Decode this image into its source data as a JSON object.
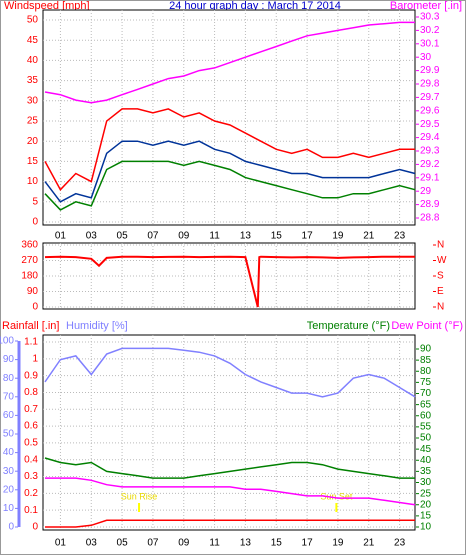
{
  "chart_data": [
    {
      "type": "line",
      "title": "24 hour graph day : March 17 2014",
      "y_label": "Windspeed [mph]",
      "y2_label": "Barometer [.in]",
      "grid": true,
      "x": [
        0,
        1,
        2,
        3,
        4,
        5,
        6,
        7,
        8,
        9,
        10,
        11,
        12,
        13,
        14,
        15,
        16,
        17,
        18,
        19,
        20,
        21,
        22,
        23,
        24
      ],
      "xlim": [
        0,
        24
      ],
      "xticks": [
        {
          "value": 1,
          "label": "01"
        },
        {
          "value": 3,
          "label": "03"
        },
        {
          "value": 5,
          "label": "05"
        },
        {
          "value": 7,
          "label": "07"
        },
        {
          "value": 9,
          "label": "09"
        },
        {
          "value": 11,
          "label": "11"
        },
        {
          "value": 13,
          "label": "13"
        },
        {
          "value": 15,
          "label": "15"
        },
        {
          "value": 17,
          "label": "17"
        },
        {
          "value": 19,
          "label": "19"
        },
        {
          "value": 21,
          "label": "21"
        },
        {
          "value": 23,
          "label": "23"
        }
      ],
      "ylim": [
        0,
        50
      ],
      "yticks": [
        0,
        5,
        10,
        15,
        20,
        25,
        30,
        35,
        40,
        45,
        50
      ],
      "y2lim": [
        28.8,
        30.3
      ],
      "y2ticks": [
        28.8,
        28.9,
        29,
        29.1,
        29.2,
        29.3,
        29.4,
        29.5,
        29.6,
        29.7,
        29.8,
        29.9,
        30,
        30.1,
        30.2,
        30.3
      ],
      "series": [
        {
          "color": "#ff0000",
          "values": [
            15,
            8,
            12,
            10,
            25,
            28,
            28,
            27,
            28,
            26,
            27,
            25,
            24,
            22,
            20,
            18,
            17,
            18,
            16,
            16,
            17,
            16,
            17,
            18,
            18
          ]
        },
        {
          "color": "#003399",
          "values": [
            10,
            5,
            7,
            6,
            17,
            20,
            20,
            19,
            20,
            19,
            20,
            18,
            17,
            15,
            14,
            13,
            12,
            12,
            11,
            11,
            11,
            11,
            12,
            13,
            12
          ]
        },
        {
          "color": "#008000",
          "values": [
            7,
            3,
            5,
            4,
            13,
            15,
            15,
            15,
            15,
            14,
            15,
            14,
            13,
            11,
            10,
            9,
            8,
            7,
            6,
            6,
            7,
            7,
            8,
            9,
            8
          ]
        },
        {
          "color": "#ff00ff",
          "axis": "y2",
          "values": [
            29.74,
            29.72,
            29.68,
            29.66,
            29.68,
            29.72,
            29.76,
            29.8,
            29.84,
            29.86,
            29.9,
            29.92,
            29.96,
            30,
            30.04,
            30.08,
            30.12,
            30.16,
            30.18,
            30.2,
            30.22,
            30.24,
            30.25,
            30.26,
            30.26
          ]
        }
      ]
    },
    {
      "type": "line",
      "grid": true,
      "x": [
        0,
        1,
        2,
        3,
        3.5,
        4,
        5,
        6,
        7,
        8,
        9,
        10,
        11,
        12,
        13,
        13.8,
        13.9,
        14,
        15,
        16,
        17,
        18,
        19,
        20,
        21,
        22,
        23,
        24
      ],
      "xlim": [
        0,
        24
      ],
      "ylim": [
        0,
        360
      ],
      "yticks": [
        0,
        90,
        180,
        270,
        360
      ],
      "y2lim": [
        0,
        360
      ],
      "y2ticks": [
        {
          "value": 0,
          "label": "N"
        },
        {
          "value": 90,
          "label": "E"
        },
        {
          "value": 180,
          "label": "S"
        },
        {
          "value": 270,
          "label": "W"
        },
        {
          "value": 360,
          "label": "N"
        }
      ],
      "series": [
        {
          "color": "#ff0000",
          "values": [
            290,
            292,
            290,
            280,
            240,
            285,
            292,
            292,
            290,
            291,
            292,
            290,
            291,
            292,
            290,
            0,
            290,
            292,
            290,
            288,
            290,
            288,
            285,
            288,
            290,
            292,
            292,
            292
          ]
        }
      ]
    },
    {
      "type": "line",
      "y_label": "Rainfall [.in]",
      "y3_label": "Humidity [%]",
      "y2_label": "Temperature (°F)",
      "y2b_label": "Dew Point (°F)",
      "grid": true,
      "x": [
        0,
        1,
        2,
        3,
        4,
        5,
        6,
        7,
        8,
        9,
        10,
        11,
        12,
        13,
        14,
        15,
        16,
        17,
        18,
        19,
        20,
        21,
        22,
        23,
        24
      ],
      "xlim": [
        0,
        24
      ],
      "xticks": [
        {
          "value": 1,
          "label": "01"
        },
        {
          "value": 3,
          "label": "03"
        },
        {
          "value": 5,
          "label": "05"
        },
        {
          "value": 7,
          "label": "07"
        },
        {
          "value": 9,
          "label": "09"
        },
        {
          "value": 11,
          "label": "11"
        },
        {
          "value": 13,
          "label": "13"
        },
        {
          "value": 15,
          "label": "15"
        },
        {
          "value": 17,
          "label": "17"
        },
        {
          "value": 19,
          "label": "19"
        },
        {
          "value": 21,
          "label": "21"
        },
        {
          "value": 23,
          "label": "23"
        }
      ],
      "ylim": [
        0,
        1.1
      ],
      "yticks": [
        0,
        0.1,
        0.2,
        0.3,
        0.4,
        0.5,
        0.6,
        0.7,
        0.8,
        0.9,
        1,
        1.1
      ],
      "y3lim": [
        0,
        100
      ],
      "y3ticks": [
        0,
        10,
        20,
        30,
        40,
        50,
        60,
        70,
        80,
        90,
        100
      ],
      "y2lim": [
        10,
        90
      ],
      "y2ticks": [
        10,
        15,
        20,
        25,
        30,
        35,
        40,
        45,
        50,
        55,
        60,
        65,
        70,
        75,
        80,
        85,
        90
      ],
      "annotations": [
        {
          "text": "Sun Rise",
          "x": 6.1
        },
        {
          "text": "Sun Set",
          "x": 18.9
        }
      ],
      "series": [
        {
          "color": "#8080ff",
          "axis": "y3",
          "values": [
            78,
            90,
            92,
            82,
            93,
            96,
            96,
            96,
            96,
            95,
            94,
            92,
            88,
            82,
            78,
            75,
            72,
            72,
            70,
            72,
            80,
            82,
            80,
            75,
            70
          ]
        },
        {
          "color": "#008000",
          "axis": "y2",
          "values": [
            41,
            39,
            38,
            39,
            35,
            34,
            33,
            32,
            32,
            32,
            33,
            34,
            35,
            36,
            37,
            38,
            39,
            39,
            38,
            36,
            35,
            34,
            33,
            32,
            32
          ]
        },
        {
          "color": "#ff00ff",
          "axis": "y2",
          "values": [
            32,
            32,
            32,
            31,
            29,
            28,
            28,
            28,
            28,
            28,
            28,
            28,
            28,
            27,
            27,
            26,
            25,
            24,
            24,
            23,
            23,
            23,
            22,
            21,
            20
          ]
        },
        {
          "color": "#ff0000",
          "values": [
            0,
            0,
            0,
            0.01,
            0.04,
            0.04,
            0.04,
            0.04,
            0.04,
            0.04,
            0.04,
            0.04,
            0.04,
            0.04,
            0.04,
            0.04,
            0.04,
            0.04,
            0.04,
            0.04,
            0.04,
            0.04,
            0.04,
            0.04,
            0.04
          ]
        }
      ]
    }
  ]
}
